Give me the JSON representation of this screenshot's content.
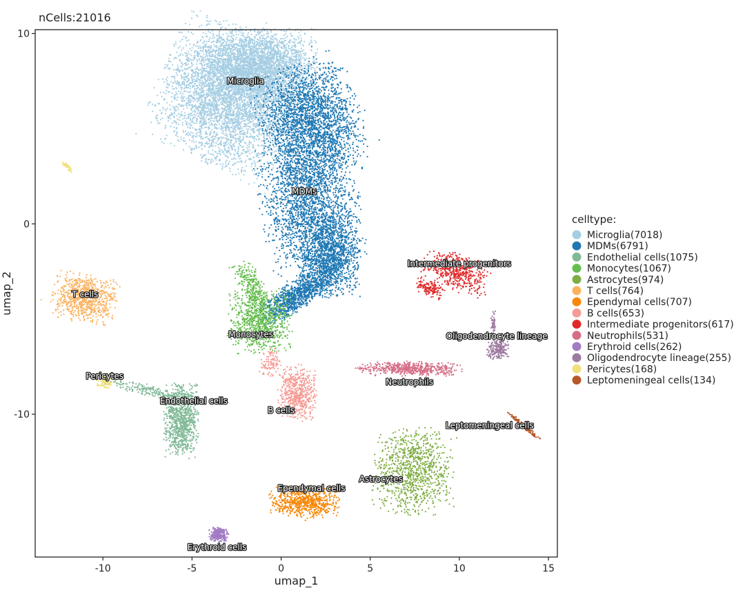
{
  "chart_data": {
    "type": "scatter",
    "title": "nCells:21016",
    "xlabel": "umap_1",
    "ylabel": "umap_2",
    "xlim": [
      -13.8,
      15.5
    ],
    "ylim": [
      -17.5,
      10.2
    ],
    "x_ticks": [
      -10,
      -5,
      0,
      5,
      10,
      15
    ],
    "y_ticks": [
      -10,
      0,
      10
    ],
    "grid": false,
    "legend": {
      "title": "celltype:",
      "position": "right"
    },
    "series": [
      {
        "name": "Microglia(7018)",
        "label": "Microglia",
        "count": 7018,
        "color": "#a6cee3",
        "label_pos": [
          -2,
          7.5
        ],
        "clusters": [
          {
            "cx": -2.8,
            "cy": 6.6,
            "sx": 1.9,
            "sy": 1.7,
            "rot": -25,
            "w": 0.62
          },
          {
            "cx": -1.2,
            "cy": 8.3,
            "sx": 1.5,
            "sy": 0.9,
            "rot": 0,
            "w": 0.38
          }
        ]
      },
      {
        "name": "MDMs(6791)",
        "label": "MDMs",
        "count": 6791,
        "color": "#1f78b4",
        "label_pos": [
          1.3,
          1.7
        ],
        "clusters": [
          {
            "cx": 1.7,
            "cy": 5.3,
            "sx": 1.3,
            "sy": 1.5,
            "rot": 20,
            "w": 0.36
          },
          {
            "cx": 1.6,
            "cy": 1.0,
            "sx": 1.3,
            "sy": 1.7,
            "rot": 10,
            "w": 0.3
          },
          {
            "cx": 2.7,
            "cy": -1.7,
            "sx": 0.8,
            "sy": 1.0,
            "rot": 0,
            "w": 0.2
          },
          {
            "cx": 0.8,
            "cy": -3.8,
            "sx": 1.1,
            "sy": 0.35,
            "rot": 30,
            "w": 0.14
          }
        ]
      },
      {
        "name": "Endothelial cells(1075)",
        "label": "Endothelial cells",
        "count": 1075,
        "color": "#80b997",
        "label_pos": [
          -4.9,
          -9.3
        ],
        "clusters": [
          {
            "cx": -5.6,
            "cy": -10.3,
            "sx": 0.45,
            "sy": 0.9,
            "rot": 0,
            "w": 0.82
          },
          {
            "cx": -7.3,
            "cy": -8.8,
            "sx": 1.3,
            "sy": 0.15,
            "rot": -12,
            "w": 0.18
          }
        ]
      },
      {
        "name": "Monocytes(1067)",
        "label": "Monocytes",
        "count": 1067,
        "color": "#66bd4f",
        "label_pos": [
          -1.7,
          -5.8
        ],
        "clusters": [
          {
            "cx": -1.2,
            "cy": -5.1,
            "sx": 0.85,
            "sy": 0.8,
            "rot": 0,
            "w": 0.78
          },
          {
            "cx": -1.7,
            "cy": -3.2,
            "sx": 0.3,
            "sy": 0.7,
            "rot": 30,
            "w": 0.22
          }
        ]
      },
      {
        "name": "Astrocytes(974)",
        "label": "Astrocytes",
        "count": 974,
        "color": "#7fad43",
        "label_pos": [
          5.6,
          -13.4
        ],
        "clusters": [
          {
            "cx": 7.4,
            "cy": -13.0,
            "sx": 1.05,
            "sy": 1.05,
            "rot": 0,
            "w": 1.0
          }
        ]
      },
      {
        "name": "T cells(764)",
        "label": "T cells",
        "count": 764,
        "color": "#fbb25f",
        "label_pos": [
          -11,
          -3.7
        ],
        "clusters": [
          {
            "cx": -11.0,
            "cy": -3.9,
            "sx": 0.85,
            "sy": 0.6,
            "rot": -10,
            "w": 1.0
          }
        ]
      },
      {
        "name": "Ependymal cells(707)",
        "label": "Ependymal cells",
        "count": 707,
        "color": "#f7880a",
        "label_pos": [
          1.7,
          -13.9
        ],
        "clusters": [
          {
            "cx": 1.3,
            "cy": -14.6,
            "sx": 0.9,
            "sy": 0.4,
            "rot": 0,
            "w": 1.0
          }
        ]
      },
      {
        "name": "B cells(653)",
        "label": "B cells",
        "count": 653,
        "color": "#f59b95",
        "label_pos": [
          0,
          -9.8
        ],
        "clusters": [
          {
            "cx": 0.9,
            "cy": -8.9,
            "sx": 0.5,
            "sy": 0.7,
            "rot": 0,
            "w": 0.85
          },
          {
            "cx": -0.6,
            "cy": -7.3,
            "sx": 0.25,
            "sy": 0.4,
            "rot": 0,
            "w": 0.15
          }
        ]
      },
      {
        "name": "Intermediate progenitors(617)",
        "label": "Intermediate progenitors",
        "count": 617,
        "color": "#e02a2a",
        "label_pos": [
          10.0,
          -2.1
        ],
        "clusters": [
          {
            "cx": 9.8,
            "cy": -2.5,
            "sx": 0.9,
            "sy": 0.45,
            "rot": -20,
            "w": 0.78
          },
          {
            "cx": 8.4,
            "cy": -3.4,
            "sx": 0.4,
            "sy": 0.2,
            "rot": -20,
            "w": 0.22
          }
        ]
      },
      {
        "name": "Neutrophils(531)",
        "label": "Neutrophils",
        "count": 531,
        "color": "#d56e86",
        "label_pos": [
          7.2,
          -8.3
        ],
        "clusters": [
          {
            "cx": 7.2,
            "cy": -7.6,
            "sx": 1.4,
            "sy": 0.18,
            "rot": 0,
            "w": 1.0
          }
        ]
      },
      {
        "name": "Erythroid cells(262)",
        "label": "Erythroid cells",
        "count": 262,
        "color": "#a27bc4",
        "label_pos": [
          -3.6,
          -17.0
        ],
        "clusters": [
          {
            "cx": -3.5,
            "cy": -16.3,
            "sx": 0.25,
            "sy": 0.18,
            "rot": 0,
            "w": 1.0
          }
        ]
      },
      {
        "name": "Oligodendrocyte lineage(255)",
        "label": "Oligodendrocyte lineage",
        "count": 255,
        "color": "#9d7aa0",
        "label_pos": [
          12.1,
          -5.9
        ],
        "clusters": [
          {
            "cx": 12.2,
            "cy": -6.6,
            "sx": 0.3,
            "sy": 0.25,
            "rot": 0,
            "w": 0.8
          },
          {
            "cx": 11.9,
            "cy": -5.3,
            "sx": 0.06,
            "sy": 0.4,
            "rot": 0,
            "w": 0.2
          }
        ]
      },
      {
        "name": "Pericytes(168)",
        "label": "Pericytes",
        "count": 168,
        "color": "#f1df7c",
        "label_pos": [
          -9.9,
          -8.0
        ],
        "clusters": [
          {
            "cx": -9.9,
            "cy": -8.2,
            "sx": 0.22,
            "sy": 0.2,
            "rot": 0,
            "w": 0.75
          },
          {
            "cx": -12.0,
            "cy": 3.0,
            "sx": 0.22,
            "sy": 0.05,
            "rot": -45,
            "w": 0.25
          }
        ]
      },
      {
        "name": "Leptomeningeal cells(134)",
        "label": "Leptomeningeal cells",
        "count": 134,
        "color": "#b5592a",
        "label_pos": [
          11.7,
          -10.6
        ],
        "clusters": [
          {
            "cx": 13.6,
            "cy": -10.6,
            "sx": 0.55,
            "sy": 0.05,
            "rot": -38,
            "w": 1.0
          }
        ]
      }
    ]
  }
}
